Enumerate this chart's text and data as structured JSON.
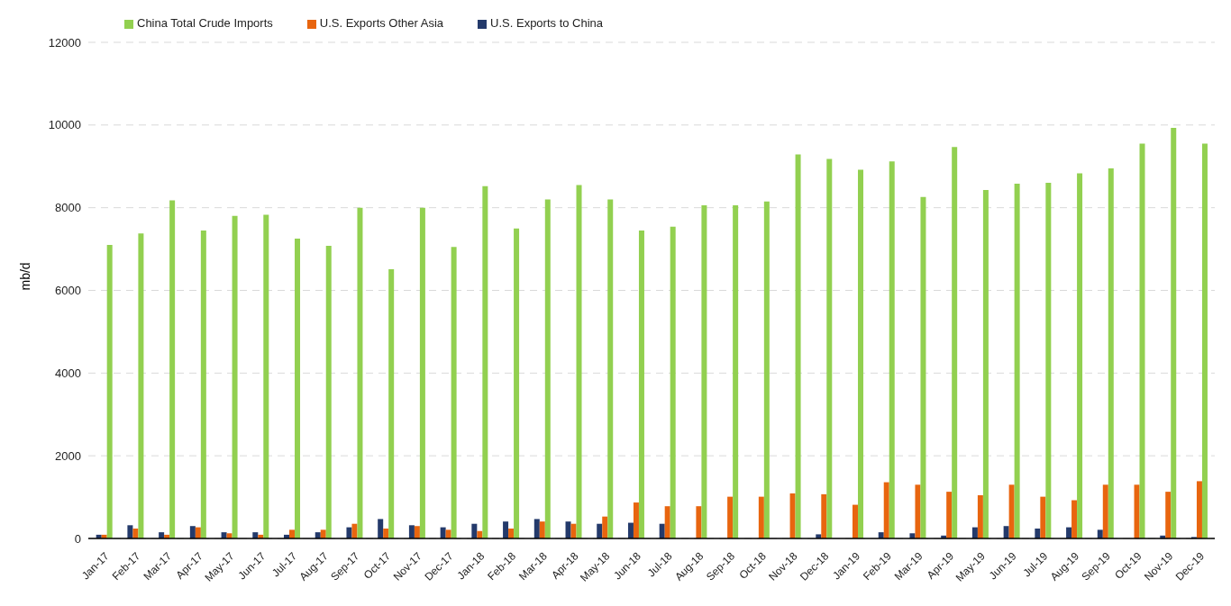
{
  "chart_data": {
    "type": "bar",
    "ylabel": "mb/d",
    "categories": [
      "Jan-17",
      "Feb-17",
      "Mar-17",
      "Apr-17",
      "May-17",
      "Jun-17",
      "Jul-17",
      "Aug-17",
      "Sep-17",
      "Oct-17",
      "Nov-17",
      "Dec-17",
      "Jan-18",
      "Feb-18",
      "Mar-18",
      "Apr-18",
      "May-18",
      "Jun-18",
      "Jul-18",
      "Aug-18",
      "Sep-18",
      "Oct-18",
      "Nov-18",
      "Dec-18",
      "Jan-19",
      "Feb-19",
      "Mar-19",
      "Apr-19",
      "May-19",
      "Jun-19",
      "Jul-19",
      "Aug-19",
      "Sep-19",
      "Oct-19",
      "Nov-19",
      "Dec-19"
    ],
    "series": [
      {
        "name": "U.S. Exports to China",
        "color": "#243a6b",
        "values": [
          90,
          320,
          150,
          300,
          150,
          150,
          90,
          150,
          270,
          470,
          320,
          270,
          355,
          410,
          470,
          410,
          355,
          380,
          355,
          0,
          0,
          0,
          0,
          100,
          0,
          150,
          125,
          70,
          270,
          300,
          240,
          270,
          210,
          0,
          70,
          35
        ]
      },
      {
        "name": "U.S. Exports Other Asia",
        "color": "#e8650f",
        "values": [
          90,
          240,
          90,
          270,
          125,
          90,
          210,
          210,
          355,
          240,
          300,
          210,
          180,
          240,
          410,
          355,
          530,
          870,
          780,
          780,
          1010,
          1010,
          1090,
          1070,
          815,
          1360,
          1300,
          1130,
          1045,
          1300,
          1010,
          925,
          1300,
          1300,
          1130,
          1385
        ]
      },
      {
        "name": "China Total Crude Imports",
        "color": "#92d050",
        "values": [
          7100,
          7380,
          8180,
          7450,
          7800,
          7830,
          7250,
          7080,
          8000,
          6510,
          8000,
          7050,
          8520,
          7500,
          8200,
          8550,
          8200,
          7450,
          7540,
          8060,
          8060,
          8150,
          9290,
          9180,
          8920,
          9120,
          8260,
          9470,
          8430,
          8580,
          8600,
          8830,
          8950,
          9550,
          9930,
          9550
        ]
      }
    ],
    "ylim": [
      0,
      12000
    ],
    "yticks": [
      0,
      2000,
      4000,
      6000,
      8000,
      10000,
      12000
    ],
    "grid": "y",
    "legend": "top left"
  }
}
